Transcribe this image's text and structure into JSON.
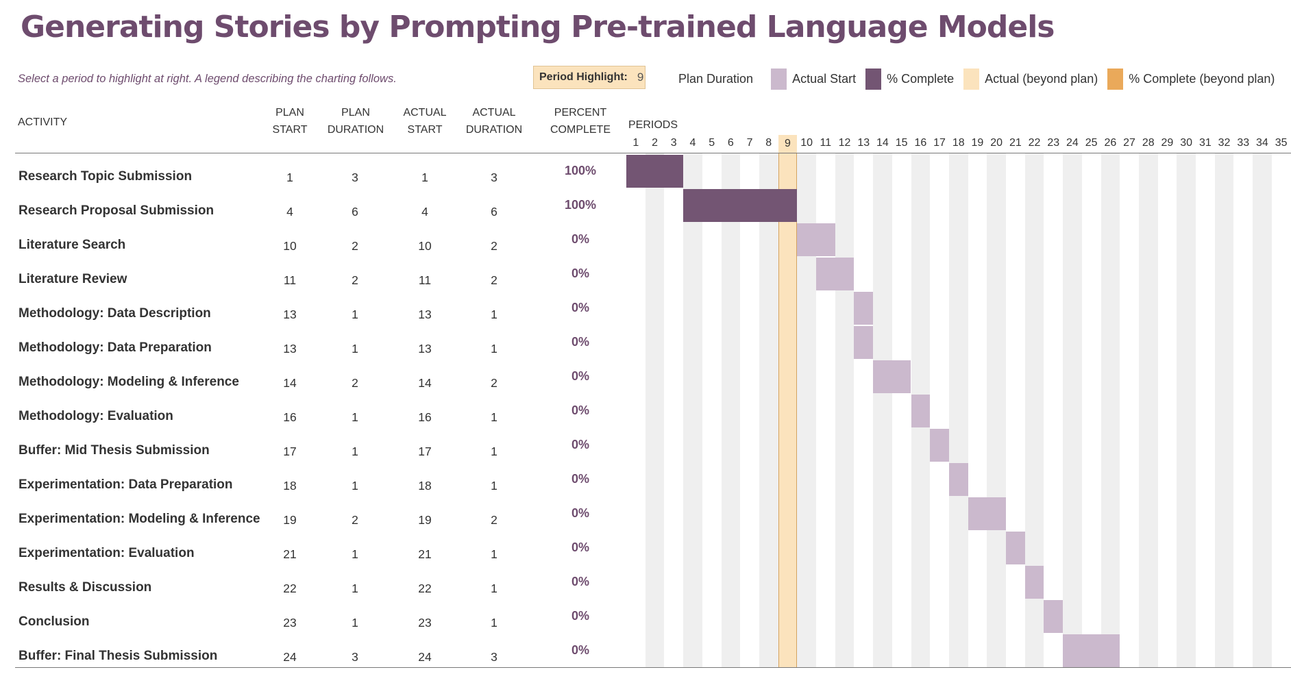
{
  "title": "Generating Stories by Prompting Pre-trained Language Models",
  "hint": "Select a period to highlight at right.  A legend describing the charting follows.",
  "period_highlight": {
    "label": "Period Highlight:",
    "value": "9"
  },
  "legend": [
    {
      "label": "Plan Duration",
      "color": ""
    },
    {
      "label": "Actual Start",
      "color": "#cbb9cd"
    },
    {
      "label": "% Complete",
      "color": "#735573"
    },
    {
      "label": "Actual (beyond plan)",
      "color": "#fbe3bd"
    },
    {
      "label": "% Complete (beyond plan)",
      "color": "#eaa95a"
    }
  ],
  "headers": {
    "activity": "ACTIVITY",
    "plan_start": [
      "PLAN",
      "START"
    ],
    "plan_duration": [
      "PLAN",
      "DURATION"
    ],
    "actual_start": [
      "ACTUAL",
      "START"
    ],
    "actual_duration": [
      "ACTUAL",
      "DURATION"
    ],
    "percent_complete": [
      "PERCENT",
      "COMPLETE"
    ],
    "periods": "PERIODS"
  },
  "periods": [
    1,
    2,
    3,
    4,
    5,
    6,
    7,
    8,
    9,
    10,
    11,
    12,
    13,
    14,
    15,
    16,
    17,
    18,
    19,
    20,
    21,
    22,
    23,
    24,
    25,
    26,
    27,
    28,
    29,
    30,
    31,
    32,
    33,
    34,
    35
  ],
  "highlighted_period": 9,
  "colors": {
    "complete": "#735573",
    "actual": "#cbb9cd",
    "highlight": "#fbe3bd",
    "title": "#6e4c6e"
  },
  "activities": [
    {
      "name": "Research Topic Submission",
      "plan_start": "1",
      "plan_duration": "3",
      "actual_start": "1",
      "actual_duration": "3",
      "percent": "100%"
    },
    {
      "name": "Research Proposal Submission",
      "plan_start": "4",
      "plan_duration": "6",
      "actual_start": "4",
      "actual_duration": "6",
      "percent": "100%"
    },
    {
      "name": "Literature Search",
      "plan_start": "10",
      "plan_duration": "2",
      "actual_start": "10",
      "actual_duration": "2",
      "percent": "0%"
    },
    {
      "name": "Literature Review",
      "plan_start": "11",
      "plan_duration": "2",
      "actual_start": "11",
      "actual_duration": "2",
      "percent": "0%"
    },
    {
      "name": "Methodology: Data Description",
      "plan_start": "13",
      "plan_duration": "1",
      "actual_start": "13",
      "actual_duration": "1",
      "percent": "0%"
    },
    {
      "name": "Methodology: Data Preparation",
      "plan_start": "13",
      "plan_duration": "1",
      "actual_start": "13",
      "actual_duration": "1",
      "percent": "0%"
    },
    {
      "name": "Methodology: Modeling & Inference",
      "plan_start": "14",
      "plan_duration": "2",
      "actual_start": "14",
      "actual_duration": "2",
      "percent": "0%"
    },
    {
      "name": "Methodology: Evaluation",
      "plan_start": "16",
      "plan_duration": "1",
      "actual_start": "16",
      "actual_duration": "1",
      "percent": "0%"
    },
    {
      "name": "Buffer: Mid Thesis Submission",
      "plan_start": "17",
      "plan_duration": "1",
      "actual_start": "17",
      "actual_duration": "1",
      "percent": "0%"
    },
    {
      "name": "Experimentation: Data Preparation",
      "plan_start": "18",
      "plan_duration": "1",
      "actual_start": "18",
      "actual_duration": "1",
      "percent": "0%"
    },
    {
      "name": "Experimentation: Modeling & Inference",
      "plan_start": "19",
      "plan_duration": "2",
      "actual_start": "19",
      "actual_duration": "2",
      "percent": "0%"
    },
    {
      "name": "Experimentation: Evaluation",
      "plan_start": "21",
      "plan_duration": "1",
      "actual_start": "21",
      "actual_duration": "1",
      "percent": "0%"
    },
    {
      "name": "Results & Discussion",
      "plan_start": "22",
      "plan_duration": "1",
      "actual_start": "22",
      "actual_duration": "1",
      "percent": "0%"
    },
    {
      "name": "Conclusion",
      "plan_start": "23",
      "plan_duration": "1",
      "actual_start": "23",
      "actual_duration": "1",
      "percent": "0%"
    },
    {
      "name": "Buffer: Final Thesis Submission",
      "plan_start": "24",
      "plan_duration": "3",
      "actual_start": "24",
      "actual_duration": "3",
      "percent": "0%"
    }
  ]
}
